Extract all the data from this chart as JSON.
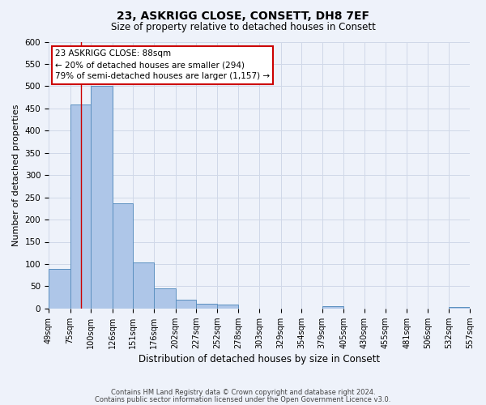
{
  "title": "23, ASKRIGG CLOSE, CONSETT, DH8 7EF",
  "subtitle": "Size of property relative to detached houses in Consett",
  "xlabel": "Distribution of detached houses by size in Consett",
  "ylabel": "Number of detached properties",
  "bar_edges": [
    49,
    75,
    100,
    126,
    151,
    176,
    202,
    227,
    252,
    278,
    303,
    329,
    354,
    379,
    405,
    430,
    455,
    481,
    506,
    532,
    557
  ],
  "bar_heights": [
    89,
    458,
    500,
    236,
    104,
    46,
    20,
    10,
    8,
    0,
    0,
    0,
    0,
    5,
    0,
    0,
    0,
    0,
    0,
    3
  ],
  "bar_color": "#aec6e8",
  "bar_edge_color": "#5b90c0",
  "grid_color": "#d0d8e8",
  "background_color": "#eef2fa",
  "property_line_x": 88,
  "property_line_color": "#cc0000",
  "annotation_line1": "23 ASKRIGG CLOSE: 88sqm",
  "annotation_line2": "← 20% of detached houses are smaller (294)",
  "annotation_line3": "79% of semi-detached houses are larger (1,157) →",
  "annotation_box_color": "#ffffff",
  "annotation_box_edge_color": "#cc0000",
  "ylim": [
    0,
    600
  ],
  "yticks": [
    0,
    50,
    100,
    150,
    200,
    250,
    300,
    350,
    400,
    450,
    500,
    550,
    600
  ],
  "tick_labels": [
    "49sqm",
    "75sqm",
    "100sqm",
    "126sqm",
    "151sqm",
    "176sqm",
    "202sqm",
    "227sqm",
    "252sqm",
    "278sqm",
    "303sqm",
    "329sqm",
    "354sqm",
    "379sqm",
    "405sqm",
    "430sqm",
    "455sqm",
    "481sqm",
    "506sqm",
    "532sqm",
    "557sqm"
  ],
  "footer1": "Contains HM Land Registry data © Crown copyright and database right 2024.",
  "footer2": "Contains public sector information licensed under the Open Government Licence v3.0."
}
